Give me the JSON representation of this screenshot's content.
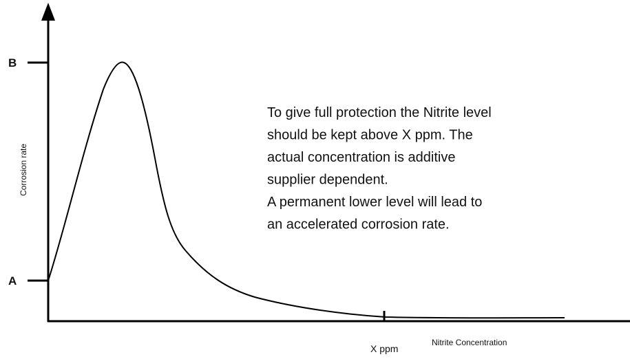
{
  "y_axis_label": "Corrosion rate",
  "x_axis_label": "Nitrite Concentration",
  "y_markers": {
    "top": "B",
    "bottom": "A"
  },
  "x_marker": "X ppm",
  "annotation": [
    "To give full protection the Nitrite level",
    "should be kept above X ppm. The",
    "actual concentration is additive",
    "supplier dependent.",
    "A permanent lower level will lead to",
    "an accelerated corrosion rate."
  ]
}
